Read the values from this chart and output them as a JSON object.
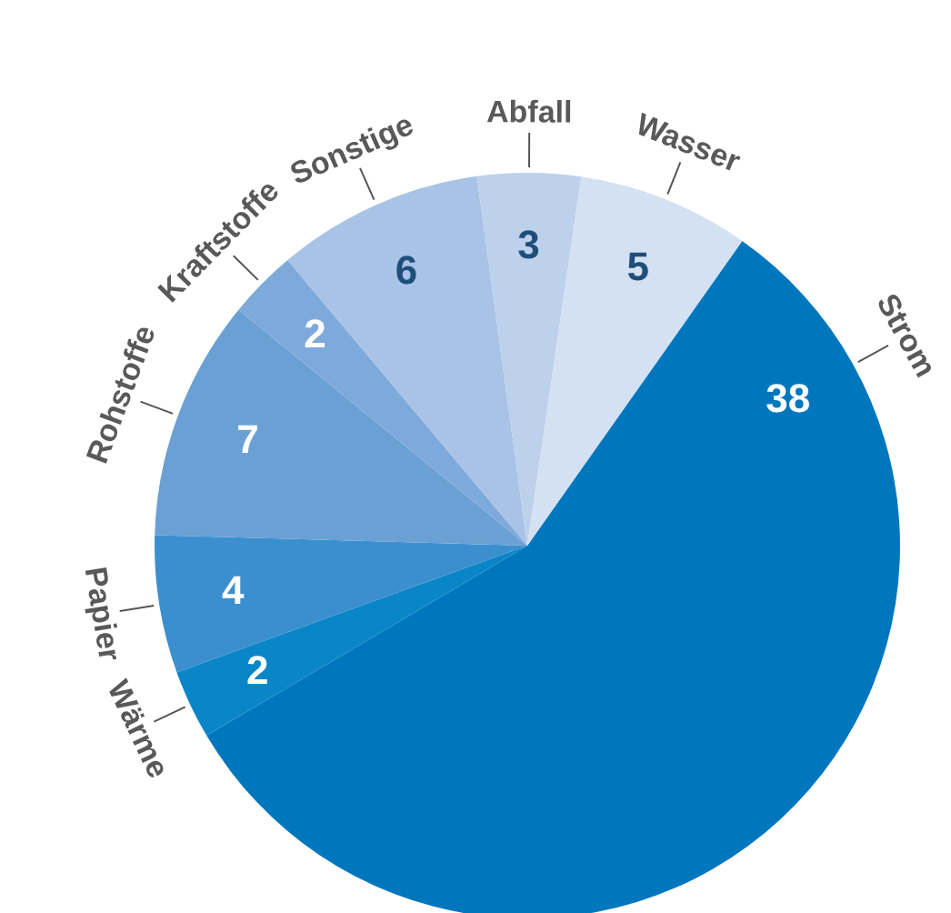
{
  "chart_data": {
    "type": "pie",
    "categories": [
      "Strom",
      "Wärme",
      "Papier",
      "Rohstoffe",
      "Kraftstoffe",
      "Sonstige",
      "Abfall",
      "Wasser"
    ],
    "values": [
      38,
      2,
      4,
      7,
      2,
      6,
      3,
      5
    ],
    "colors": [
      "#0077bd",
      "#0a86c8",
      "#3b8fcf",
      "#6aa0d4",
      "#7eaadb",
      "#a8c3e6",
      "#bdd1ec",
      "#d4e1f2"
    ],
    "data_labels": true,
    "legend": false
  }
}
